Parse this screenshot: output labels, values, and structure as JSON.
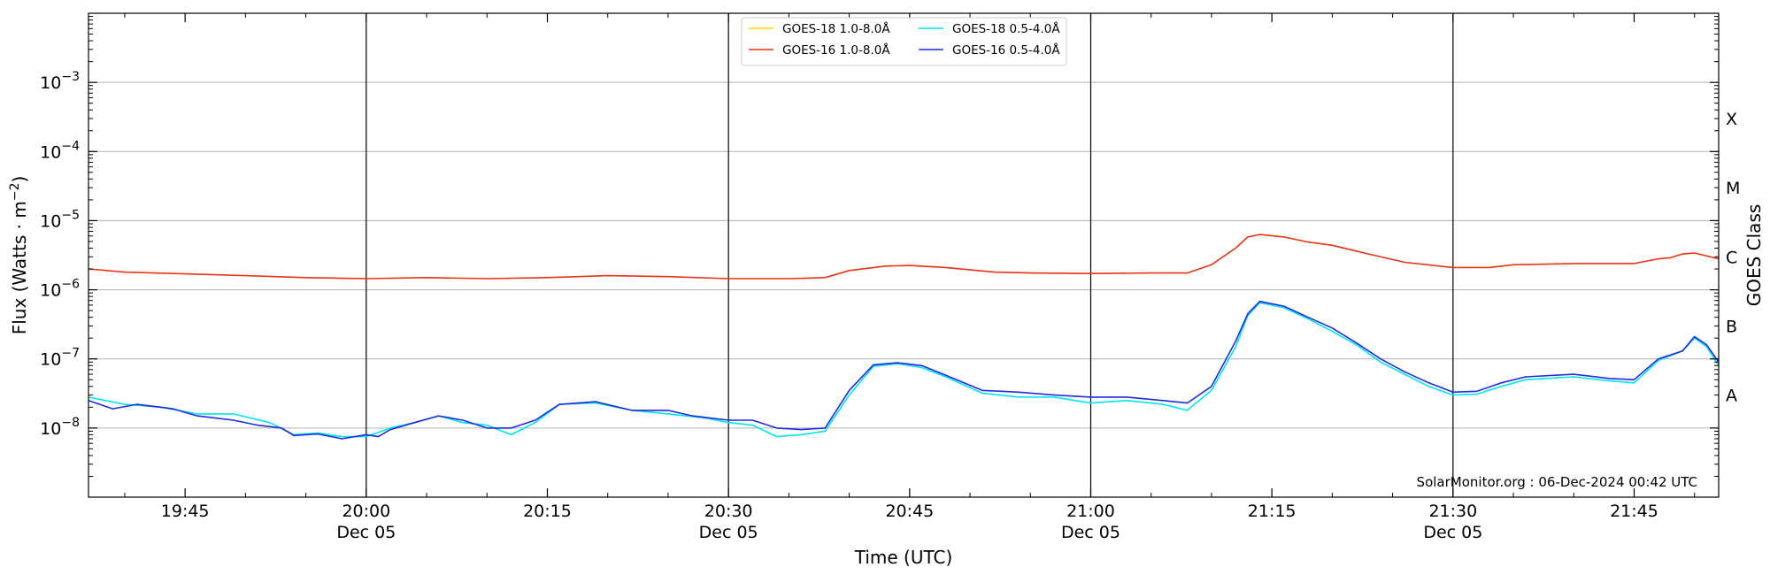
{
  "chart_data": {
    "type": "line",
    "xlabel": "Time (UTC)",
    "ylabel_base": "Flux (Watts · m",
    "ylabel_exp": "−2",
    "ylabel_close": ")",
    "right_label": "GOES Class",
    "credit": "SolarMonitor.org : 06-Dec-2024 00:42 UTC",
    "y_scale": "log",
    "ylim": [
      1e-09,
      0.01
    ],
    "xlim": [
      "19:37",
      "21:52"
    ],
    "grid": "horizontal",
    "legend_position": "top-center",
    "x_ticks": [
      {
        "t": "19:45",
        "time": "19:45",
        "date": ""
      },
      {
        "t": "20:00",
        "time": "20:00",
        "date": "Dec 05"
      },
      {
        "t": "20:15",
        "time": "20:15",
        "date": ""
      },
      {
        "t": "20:30",
        "time": "20:30",
        "date": "Dec 05"
      },
      {
        "t": "20:45",
        "time": "20:45",
        "date": ""
      },
      {
        "t": "21:00",
        "time": "21:00",
        "date": "Dec 05"
      },
      {
        "t": "21:15",
        "time": "21:15",
        "date": ""
      },
      {
        "t": "21:30",
        "time": "21:30",
        "date": "Dec 05"
      },
      {
        "t": "21:45",
        "time": "21:45",
        "date": ""
      }
    ],
    "vertical_lines": [
      "20:00",
      "20:30",
      "21:00",
      "21:30"
    ],
    "y_ticks": [
      {
        "value": 1e-08,
        "base": "10",
        "exp": "−8"
      },
      {
        "value": 1e-07,
        "base": "10",
        "exp": "−7"
      },
      {
        "value": 1e-06,
        "base": "10",
        "exp": "−6"
      },
      {
        "value": 1e-05,
        "base": "10",
        "exp": "−5"
      },
      {
        "value": 0.0001,
        "base": "10",
        "exp": "−4"
      },
      {
        "value": 0.001,
        "base": "10",
        "exp": "−3"
      }
    ],
    "goes_classes": [
      {
        "label": "A",
        "y": 3e-08
      },
      {
        "label": "B",
        "y": 3e-07
      },
      {
        "label": "C",
        "y": 3e-06
      },
      {
        "label": "M",
        "y": 3e-05
      },
      {
        "label": "X",
        "y": 0.0003
      }
    ],
    "series": [
      {
        "name": "GOES-18 1.0-8.0Å",
        "color": "#ffd700",
        "points": [
          [
            "19:37",
            1.9e-06
          ],
          [
            "21:52",
            2.7e-06
          ]
        ],
        "visible": false
      },
      {
        "name": "GOES-16 1.0-8.0Å",
        "color": "#e63312",
        "points": [
          [
            "19:37",
            2e-06
          ],
          [
            "19:40",
            1.8e-06
          ],
          [
            "19:45",
            1.7e-06
          ],
          [
            "19:50",
            1.6e-06
          ],
          [
            "19:55",
            1.5e-06
          ],
          [
            "20:00",
            1.45e-06
          ],
          [
            "20:05",
            1.5e-06
          ],
          [
            "20:10",
            1.45e-06
          ],
          [
            "20:15",
            1.5e-06
          ],
          [
            "20:20",
            1.6e-06
          ],
          [
            "20:25",
            1.55e-06
          ],
          [
            "20:30",
            1.45e-06
          ],
          [
            "20:35",
            1.45e-06
          ],
          [
            "20:38",
            1.5e-06
          ],
          [
            "20:40",
            1.9e-06
          ],
          [
            "20:43",
            2.2e-06
          ],
          [
            "20:45",
            2.25e-06
          ],
          [
            "20:48",
            2.1e-06
          ],
          [
            "20:52",
            1.8e-06
          ],
          [
            "20:55",
            1.75e-06
          ],
          [
            "21:00",
            1.72e-06
          ],
          [
            "21:05",
            1.75e-06
          ],
          [
            "21:08",
            1.75e-06
          ],
          [
            "21:10",
            2.3e-06
          ],
          [
            "21:12",
            4e-06
          ],
          [
            "21:13",
            5.8e-06
          ],
          [
            "21:14",
            6.3e-06
          ],
          [
            "21:16",
            5.8e-06
          ],
          [
            "21:18",
            4.9e-06
          ],
          [
            "21:20",
            4.4e-06
          ],
          [
            "21:23",
            3.3e-06
          ],
          [
            "21:26",
            2.5e-06
          ],
          [
            "21:30",
            2.1e-06
          ],
          [
            "21:33",
            2.1e-06
          ],
          [
            "21:35",
            2.3e-06
          ],
          [
            "21:40",
            2.4e-06
          ],
          [
            "21:45",
            2.4e-06
          ],
          [
            "21:47",
            2.8e-06
          ],
          [
            "21:48",
            2.9e-06
          ],
          [
            "21:49",
            3.3e-06
          ],
          [
            "21:50",
            3.4e-06
          ],
          [
            "21:52",
            2.8e-06
          ]
        ]
      },
      {
        "name": "GOES-18 0.5-4.0Å",
        "color": "#00e5ee",
        "points": [
          [
            "19:37",
            2.8e-08
          ],
          [
            "19:40",
            2.2e-08
          ],
          [
            "19:43",
            2e-08
          ],
          [
            "19:46",
            1.6e-08
          ],
          [
            "19:49",
            1.6e-08
          ],
          [
            "19:52",
            1.2e-08
          ],
          [
            "19:54",
            8e-09
          ],
          [
            "19:56",
            8.5e-09
          ],
          [
            "19:58",
            7.5e-09
          ],
          [
            "20:00",
            7.5e-09
          ],
          [
            "20:02",
            1e-08
          ],
          [
            "20:04",
            1.2e-08
          ],
          [
            "20:06",
            1.5e-08
          ],
          [
            "20:08",
            1.2e-08
          ],
          [
            "20:10",
            1.1e-08
          ],
          [
            "20:12",
            8e-09
          ],
          [
            "20:14",
            1.2e-08
          ],
          [
            "20:16",
            2.2e-08
          ],
          [
            "20:19",
            2.3e-08
          ],
          [
            "20:22",
            1.8e-08
          ],
          [
            "20:25",
            1.6e-08
          ],
          [
            "20:28",
            1.4e-08
          ],
          [
            "20:30",
            1.2e-08
          ],
          [
            "20:32",
            1.1e-08
          ],
          [
            "20:34",
            7.5e-09
          ],
          [
            "20:36",
            8e-09
          ],
          [
            "20:38",
            9e-09
          ],
          [
            "20:40",
            3e-08
          ],
          [
            "20:42",
            7.8e-08
          ],
          [
            "20:44",
            8.5e-08
          ],
          [
            "20:46",
            7.5e-08
          ],
          [
            "20:48",
            5.5e-08
          ],
          [
            "20:51",
            3.2e-08
          ],
          [
            "20:54",
            2.8e-08
          ],
          [
            "20:57",
            2.8e-08
          ],
          [
            "21:00",
            2.3e-08
          ],
          [
            "21:03",
            2.5e-08
          ],
          [
            "21:06",
            2.2e-08
          ],
          [
            "21:08",
            1.8e-08
          ],
          [
            "21:10",
            3.5e-08
          ],
          [
            "21:12",
            1.5e-07
          ],
          [
            "21:13",
            4.2e-07
          ],
          [
            "21:14",
            6.5e-07
          ],
          [
            "21:16",
            5.5e-07
          ],
          [
            "21:18",
            3.8e-07
          ],
          [
            "21:20",
            2.5e-07
          ],
          [
            "21:22",
            1.6e-07
          ],
          [
            "21:24",
            9e-08
          ],
          [
            "21:26",
            6e-08
          ],
          [
            "21:28",
            4e-08
          ],
          [
            "21:30",
            3e-08
          ],
          [
            "21:32",
            3.1e-08
          ],
          [
            "21:34",
            4e-08
          ],
          [
            "21:36",
            5e-08
          ],
          [
            "21:40",
            5.5e-08
          ],
          [
            "21:43",
            4.8e-08
          ],
          [
            "21:45",
            4.5e-08
          ],
          [
            "21:47",
            9.5e-08
          ],
          [
            "21:49",
            1.3e-07
          ],
          [
            "21:50",
            2e-07
          ],
          [
            "21:51",
            1.5e-07
          ],
          [
            "21:52",
            8e-08
          ]
        ]
      },
      {
        "name": "GOES-16 0.5-4.0Å",
        "color": "#1f2be0",
        "points": [
          [
            "19:37",
            2.5e-08
          ],
          [
            "19:39",
            1.9e-08
          ],
          [
            "19:41",
            2.2e-08
          ],
          [
            "19:44",
            1.9e-08
          ],
          [
            "19:46",
            1.5e-08
          ],
          [
            "19:49",
            1.3e-08
          ],
          [
            "19:51",
            1.1e-08
          ],
          [
            "19:53",
            1e-08
          ],
          [
            "19:54",
            7.8e-09
          ],
          [
            "19:56",
            8.2e-09
          ],
          [
            "19:58",
            7e-09
          ],
          [
            "20:00",
            8e-09
          ],
          [
            "20:01",
            7.5e-09
          ],
          [
            "20:02",
            9.5e-09
          ],
          [
            "20:04",
            1.2e-08
          ],
          [
            "20:06",
            1.5e-08
          ],
          [
            "20:08",
            1.3e-08
          ],
          [
            "20:10",
            1e-08
          ],
          [
            "20:12",
            1e-08
          ],
          [
            "20:14",
            1.3e-08
          ],
          [
            "20:16",
            2.2e-08
          ],
          [
            "20:19",
            2.4e-08
          ],
          [
            "20:22",
            1.8e-08
          ],
          [
            "20:25",
            1.8e-08
          ],
          [
            "20:27",
            1.5e-08
          ],
          [
            "20:30",
            1.3e-08
          ],
          [
            "20:32",
            1.3e-08
          ],
          [
            "20:34",
            1e-08
          ],
          [
            "20:36",
            9.5e-09
          ],
          [
            "20:38",
            1e-08
          ],
          [
            "20:40",
            3.5e-08
          ],
          [
            "20:42",
            8.2e-08
          ],
          [
            "20:44",
            8.8e-08
          ],
          [
            "20:46",
            8e-08
          ],
          [
            "20:48",
            5.8e-08
          ],
          [
            "20:51",
            3.5e-08
          ],
          [
            "20:54",
            3.3e-08
          ],
          [
            "20:57",
            3e-08
          ],
          [
            "21:00",
            2.8e-08
          ],
          [
            "21:03",
            2.8e-08
          ],
          [
            "21:06",
            2.5e-08
          ],
          [
            "21:08",
            2.3e-08
          ],
          [
            "21:10",
            4e-08
          ],
          [
            "21:12",
            1.8e-07
          ],
          [
            "21:13",
            4.5e-07
          ],
          [
            "21:14",
            6.8e-07
          ],
          [
            "21:16",
            5.8e-07
          ],
          [
            "21:18",
            4e-07
          ],
          [
            "21:20",
            2.8e-07
          ],
          [
            "21:22",
            1.7e-07
          ],
          [
            "21:24",
            1e-07
          ],
          [
            "21:26",
            6.5e-08
          ],
          [
            "21:28",
            4.5e-08
          ],
          [
            "21:30",
            3.3e-08
          ],
          [
            "21:32",
            3.4e-08
          ],
          [
            "21:34",
            4.5e-08
          ],
          [
            "21:36",
            5.5e-08
          ],
          [
            "21:40",
            6e-08
          ],
          [
            "21:43",
            5.2e-08
          ],
          [
            "21:45",
            5e-08
          ],
          [
            "21:47",
            1e-07
          ],
          [
            "21:49",
            1.3e-07
          ],
          [
            "21:50",
            2.1e-07
          ],
          [
            "21:51",
            1.6e-07
          ],
          [
            "21:52",
            9e-08
          ]
        ]
      }
    ],
    "legend_order": [
      0,
      2,
      1,
      3
    ]
  }
}
